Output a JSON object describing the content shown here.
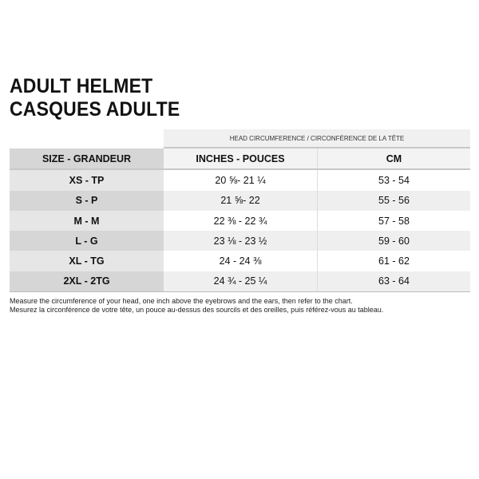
{
  "title": {
    "line1": "ADULT HELMET",
    "line2": "CASQUES ADULTE"
  },
  "table": {
    "group_header": "HEAD CIRCUMFERENCE / CIRCONFÉRENCE DE LA TÊTE",
    "headers": [
      "SIZE - GRANDEUR",
      "INCHES - POUCES",
      "CM"
    ],
    "rows": [
      {
        "size": "XS - TP",
        "inches": "20 ⅝- 21 ¼",
        "cm": "53 - 54"
      },
      {
        "size": "S - P",
        "inches": "21 ⅝- 22",
        "cm": "55 - 56"
      },
      {
        "size": "M - M",
        "inches": "22 ⅜ - 22 ¾",
        "cm": "57 - 58"
      },
      {
        "size": "L - G",
        "inches": "23 ⅛ - 23 ½",
        "cm": "59 - 60"
      },
      {
        "size": "XL - TG",
        "inches": "24 - 24 ⅜",
        "cm": "61 - 62"
      },
      {
        "size": "2XL - 2TG",
        "inches": "24 ¾ - 25 ¼",
        "cm": "63 - 64"
      }
    ]
  },
  "notes": {
    "en": "Measure the circumference of your head, one inch above the eyebrows and the ears, then refer to the chart.",
    "fr": "Mesurez la circonférence de votre tête, un pouce au-dessus des sourcils et des oreilles, puis référez-vous au tableau."
  }
}
